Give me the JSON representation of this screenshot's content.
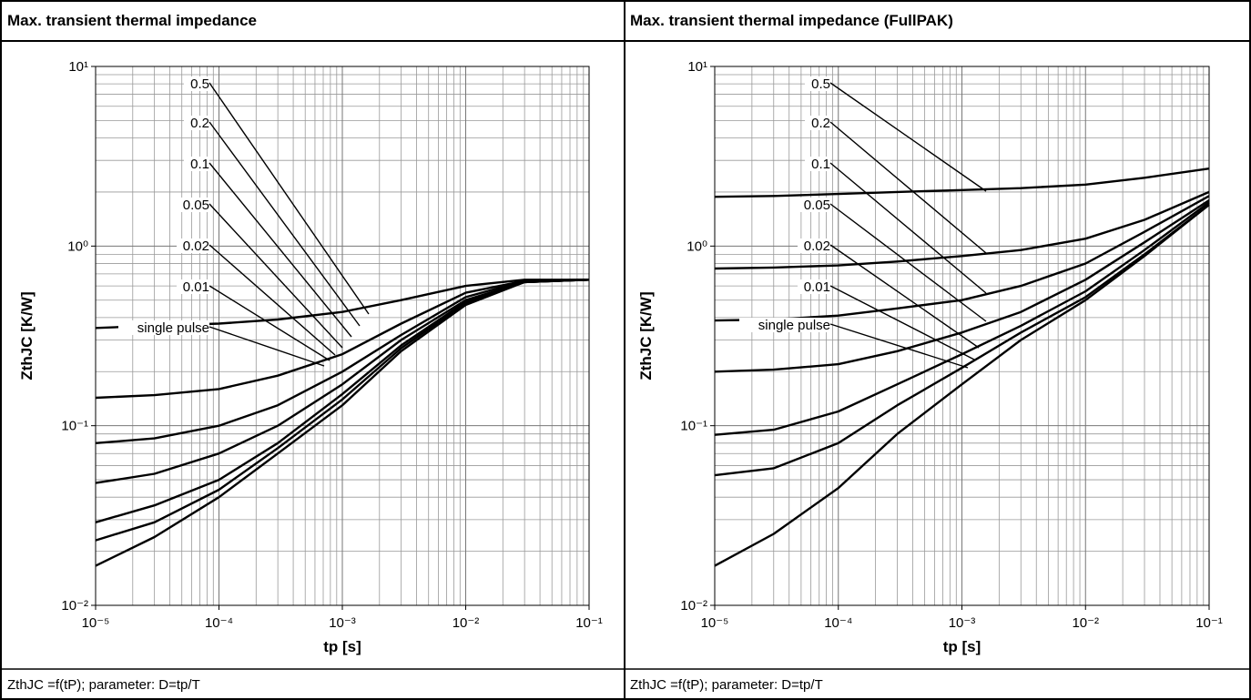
{
  "chart_data": [
    {
      "type": "line",
      "title": "Max. transient thermal impedance",
      "x": [
        1e-05,
        3e-05,
        0.0001,
        0.0003,
        0.001,
        0.003,
        0.01,
        0.03,
        0.1
      ],
      "series": [
        {
          "name": "0.5",
          "color": "#000000",
          "values": [
            0.35,
            0.36,
            0.37,
            0.39,
            0.43,
            0.5,
            0.6,
            0.65,
            0.65
          ]
        },
        {
          "name": "0.2",
          "color": "#000000",
          "values": [
            0.143,
            0.148,
            0.16,
            0.19,
            0.25,
            0.37,
            0.55,
            0.64,
            0.65
          ]
        },
        {
          "name": "0.1",
          "color": "#000000",
          "values": [
            0.08,
            0.085,
            0.1,
            0.13,
            0.2,
            0.32,
            0.52,
            0.64,
            0.65
          ]
        },
        {
          "name": "0.05",
          "color": "#000000",
          "values": [
            0.048,
            0.054,
            0.07,
            0.1,
            0.17,
            0.3,
            0.5,
            0.63,
            0.65
          ]
        },
        {
          "name": "0.02",
          "color": "#000000",
          "values": [
            0.029,
            0.036,
            0.05,
            0.08,
            0.15,
            0.28,
            0.49,
            0.63,
            0.65
          ]
        },
        {
          "name": "0.01",
          "color": "#000000",
          "values": [
            0.023,
            0.029,
            0.044,
            0.075,
            0.14,
            0.27,
            0.48,
            0.63,
            0.65
          ]
        },
        {
          "name": "single pulse",
          "color": "#000000",
          "values": [
            0.0166,
            0.024,
            0.04,
            0.07,
            0.13,
            0.26,
            0.47,
            0.63,
            0.65
          ]
        }
      ],
      "xlim": [
        1e-05,
        0.1
      ],
      "ylim": [
        0.01,
        10
      ],
      "xticks": [
        {
          "value": 1e-05,
          "label": "10⁻⁵"
        },
        {
          "value": 0.0001,
          "label": "10⁻⁴"
        },
        {
          "value": 0.001,
          "label": "10⁻³"
        },
        {
          "value": 0.01,
          "label": "10⁻²"
        },
        {
          "value": 0.1,
          "label": "10⁻¹"
        }
      ],
      "yticks": [
        {
          "value": 0.01,
          "label": "10⁻²"
        },
        {
          "value": 0.1,
          "label": "10⁻¹"
        },
        {
          "value": 1,
          "label": "10⁰"
        },
        {
          "value": 10,
          "label": "10¹"
        }
      ],
      "xlabel": "tp [s]",
      "ylabel": "ZthJC [K/W]",
      "log_x": true,
      "log_y": true,
      "grid": true,
      "caption": "ZthJC =f(tP); parameter: D=tp/T"
    },
    {
      "type": "line",
      "title": "Max. transient thermal impedance (FullPAK)",
      "x": [
        1e-05,
        3e-05,
        0.0001,
        0.0003,
        0.001,
        0.003,
        0.01,
        0.03,
        0.1
      ],
      "series": [
        {
          "name": "0.5",
          "color": "#000000",
          "values": [
            1.88,
            1.9,
            1.95,
            2.0,
            2.05,
            2.1,
            2.2,
            2.4,
            2.7
          ]
        },
        {
          "name": "0.2",
          "color": "#000000",
          "values": [
            0.75,
            0.76,
            0.78,
            0.82,
            0.88,
            0.95,
            1.1,
            1.4,
            2.0
          ]
        },
        {
          "name": "0.1",
          "color": "#000000",
          "values": [
            0.385,
            0.39,
            0.41,
            0.45,
            0.5,
            0.6,
            0.8,
            1.2,
            1.9
          ]
        },
        {
          "name": "0.05",
          "color": "#000000",
          "values": [
            0.2,
            0.205,
            0.22,
            0.26,
            0.33,
            0.43,
            0.65,
            1.05,
            1.8
          ]
        },
        {
          "name": "0.02",
          "color": "#000000",
          "values": [
            0.089,
            0.095,
            0.12,
            0.17,
            0.25,
            0.36,
            0.56,
            0.95,
            1.75
          ]
        },
        {
          "name": "0.01",
          "color": "#000000",
          "values": [
            0.053,
            0.058,
            0.08,
            0.13,
            0.21,
            0.33,
            0.52,
            0.9,
            1.7
          ]
        },
        {
          "name": "single pulse",
          "color": "#000000",
          "values": [
            0.0166,
            0.025,
            0.045,
            0.09,
            0.17,
            0.3,
            0.5,
            0.88,
            1.7
          ]
        }
      ],
      "xlim": [
        1e-05,
        0.1
      ],
      "ylim": [
        0.01,
        10
      ],
      "xticks": [
        {
          "value": 1e-05,
          "label": "10⁻⁵"
        },
        {
          "value": 0.0001,
          "label": "10⁻⁴"
        },
        {
          "value": 0.001,
          "label": "10⁻³"
        },
        {
          "value": 0.01,
          "label": "10⁻²"
        },
        {
          "value": 0.1,
          "label": "10⁻¹"
        }
      ],
      "yticks": [
        {
          "value": 0.01,
          "label": "10⁻²"
        },
        {
          "value": 0.1,
          "label": "10⁻¹"
        },
        {
          "value": 1,
          "label": "10⁰"
        },
        {
          "value": 10,
          "label": "10¹"
        }
      ],
      "xlabel": "tp [s]",
      "ylabel": "ZthJC [K/W]",
      "log_x": true,
      "log_y": true,
      "grid": true,
      "caption": "ZthJC =f(tP); parameter: D=tp/T"
    }
  ]
}
